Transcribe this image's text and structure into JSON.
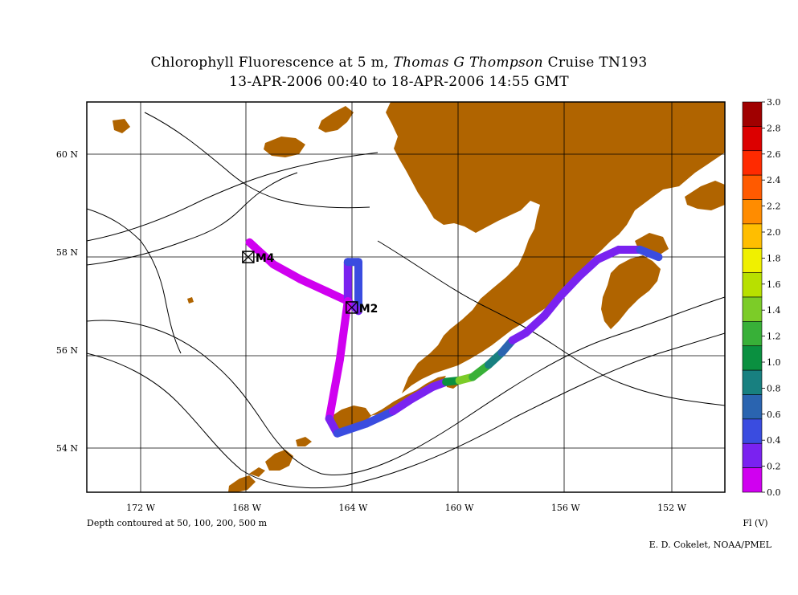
{
  "title": {
    "part1": "Chlorophyll Fluorescence at 5 m, ",
    "ship": "Thomas G  Thompson",
    "part2": " Cruise TN193",
    "subtitle": "13-APR-2006 00:40 to 18-APR-2006 14:55 GMT"
  },
  "axes": {
    "x_ticks": [
      {
        "lon": -172,
        "label": "172 W"
      },
      {
        "lon": -168,
        "label": "168 W"
      },
      {
        "lon": -164,
        "label": "164 W"
      },
      {
        "lon": -160,
        "label": "160 W"
      },
      {
        "lon": -156,
        "label": "156 W"
      },
      {
        "lon": -152,
        "label": "152 W"
      }
    ],
    "y_ticks": [
      {
        "lat": 60,
        "label": "60 N"
      },
      {
        "lat": 58,
        "label": "58 N"
      },
      {
        "lat": 56,
        "label": "56 N"
      },
      {
        "lat": 54,
        "label": "54 N"
      }
    ],
    "lon_range": [
      -174,
      -149.9
    ],
    "lat_range": [
      53.2,
      61.1
    ]
  },
  "footnotes": {
    "depth": "Depth contoured at 50, 100, 200, 500 m",
    "credit": "E. D. Cokelet, NOAA/PMEL",
    "units": "Fl (V)"
  },
  "colorbar": {
    "labels": [
      "3.0",
      "2.8",
      "2.6",
      "2.4",
      "2.2",
      "2.0",
      "1.8",
      "1.6",
      "1.4",
      "1.2",
      "1.0",
      "0.8",
      "0.6",
      "0.4",
      "0.2",
      "0.0"
    ],
    "colors": [
      "#a00000",
      "#dc0000",
      "#ff2a00",
      "#ff5a00",
      "#ff8c00",
      "#ffbe00",
      "#f0f000",
      "#b8e000",
      "#7ccc28",
      "#38b038",
      "#0a9040",
      "#188080",
      "#2a64b0",
      "#3a4ce0",
      "#7a22f0",
      "#d000f0"
    ]
  },
  "stations": [
    {
      "name": "M4",
      "lon": -167.95,
      "lat": 57.9
    },
    {
      "name": "M2",
      "lon": -164.05,
      "lat": 56.87
    }
  ],
  "chart_data": {
    "type": "map-track",
    "variable": "Chlorophyll Fluorescence at 5 m",
    "units": "Fl (V)",
    "colorbar_range": [
      0,
      3.0
    ],
    "track": [
      {
        "lon": -167.9,
        "lat": 58.2,
        "fl": 0.05
      },
      {
        "lon": -167.0,
        "lat": 57.75,
        "fl": 0.05
      },
      {
        "lon": -166.0,
        "lat": 57.45,
        "fl": 0.05
      },
      {
        "lon": -165.0,
        "lat": 57.2,
        "fl": 0.05
      },
      {
        "lon": -164.2,
        "lat": 57.0,
        "fl": 0.1
      },
      {
        "lon": -164.2,
        "lat": 57.8,
        "fl": 0.4
      },
      {
        "lon": -163.8,
        "lat": 57.8,
        "fl": 0.7
      },
      {
        "lon": -163.8,
        "lat": 56.8,
        "fl": 0.3
      },
      {
        "lon": -164.2,
        "lat": 57.0,
        "fl": 0.1
      },
      {
        "lon": -164.5,
        "lat": 55.8,
        "fl": 0.05
      },
      {
        "lon": -164.9,
        "lat": 54.6,
        "fl": 0.1
      },
      {
        "lon": -164.6,
        "lat": 54.3,
        "fl": 0.3
      },
      {
        "lon": -163.5,
        "lat": 54.5,
        "fl": 0.5
      },
      {
        "lon": -162.5,
        "lat": 54.75,
        "fl": 0.3
      },
      {
        "lon": -161.8,
        "lat": 55.0,
        "fl": 0.3
      },
      {
        "lon": -161.0,
        "lat": 55.25,
        "fl": 0.3
      },
      {
        "lon": -160.5,
        "lat": 55.35,
        "fl": 0.4
      },
      {
        "lon": -160.0,
        "lat": 55.38,
        "fl": 1.6
      },
      {
        "lon": -159.5,
        "lat": 55.45,
        "fl": 1.3
      },
      {
        "lon": -158.9,
        "lat": 55.7,
        "fl": 1.1
      },
      {
        "lon": -158.4,
        "lat": 55.95,
        "fl": 0.8
      },
      {
        "lon": -158.0,
        "lat": 56.2,
        "fl": 0.4
      },
      {
        "lon": -157.5,
        "lat": 56.35,
        "fl": 0.2
      },
      {
        "lon": -156.8,
        "lat": 56.7,
        "fl": 0.2
      },
      {
        "lon": -156.2,
        "lat": 57.1,
        "fl": 0.2
      },
      {
        "lon": -155.5,
        "lat": 57.5,
        "fl": 0.2
      },
      {
        "lon": -154.8,
        "lat": 57.85,
        "fl": 0.2
      },
      {
        "lon": -154.0,
        "lat": 58.05,
        "fl": 0.2
      },
      {
        "lon": -153.2,
        "lat": 58.05,
        "fl": 0.5
      },
      {
        "lon": -152.5,
        "lat": 57.9,
        "fl": 0.3
      }
    ]
  }
}
